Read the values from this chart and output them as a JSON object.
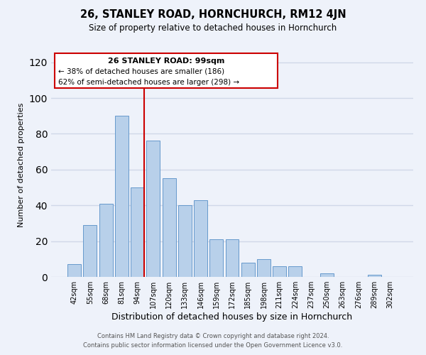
{
  "title": "26, STANLEY ROAD, HORNCHURCH, RM12 4JN",
  "subtitle": "Size of property relative to detached houses in Hornchurch",
  "xlabel": "Distribution of detached houses by size in Hornchurch",
  "ylabel": "Number of detached properties",
  "categories": [
    "42sqm",
    "55sqm",
    "68sqm",
    "81sqm",
    "94sqm",
    "107sqm",
    "120sqm",
    "133sqm",
    "146sqm",
    "159sqm",
    "172sqm",
    "185sqm",
    "198sqm",
    "211sqm",
    "224sqm",
    "237sqm",
    "250sqm",
    "263sqm",
    "276sqm",
    "289sqm",
    "302sqm"
  ],
  "values": [
    7,
    29,
    41,
    90,
    50,
    76,
    55,
    40,
    43,
    21,
    21,
    8,
    10,
    6,
    6,
    0,
    2,
    0,
    0,
    1,
    0
  ],
  "bar_color": "#b8d0ea",
  "bar_edgecolor": "#6699cc",
  "vline_color": "#cc0000",
  "annotation_title": "26 STANLEY ROAD: 99sqm",
  "annotation_line1": "← 38% of detached houses are smaller (186)",
  "annotation_line2": "62% of semi-detached houses are larger (298) →",
  "annotation_box_edgecolor": "#cc0000",
  "ylim": [
    0,
    125
  ],
  "yticks": [
    0,
    20,
    40,
    60,
    80,
    100,
    120
  ],
  "footer1": "Contains HM Land Registry data © Crown copyright and database right 2024.",
  "footer2": "Contains public sector information licensed under the Open Government Licence v3.0.",
  "bg_color": "#eef2fa",
  "grid_color": "#d0d8e8"
}
